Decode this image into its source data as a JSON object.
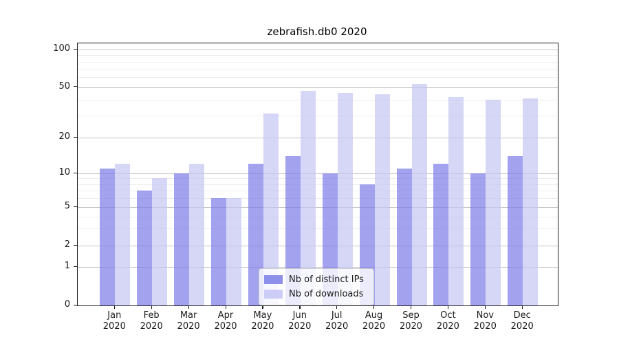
{
  "figure": {
    "title": "zebrafish.db0 2020"
  },
  "chart_data": {
    "type": "bar",
    "title": "zebrafish.db0 2020",
    "categories": [
      "Jan",
      "Feb",
      "Mar",
      "Apr",
      "May",
      "Jun",
      "Jul",
      "Aug",
      "Sep",
      "Oct",
      "Nov",
      "Dec"
    ],
    "category_year": "2020",
    "series": [
      {
        "name": "Nb of distinct IPs",
        "color": "#7b7be7",
        "values": [
          11,
          7,
          10,
          6,
          12,
          14,
          10,
          8,
          11,
          12,
          10,
          14
        ]
      },
      {
        "name": "Nb of downloads",
        "color": "#c4c4f4",
        "values": [
          12,
          9,
          12,
          6,
          31,
          47,
          45,
          44,
          53,
          42,
          40,
          41
        ]
      }
    ],
    "yticks": [
      0,
      1,
      2,
      5,
      10,
      20,
      50,
      100
    ],
    "ylim": [
      0,
      115
    ],
    "yscale": "symlog",
    "grid": true,
    "legend_position": "lower center"
  }
}
